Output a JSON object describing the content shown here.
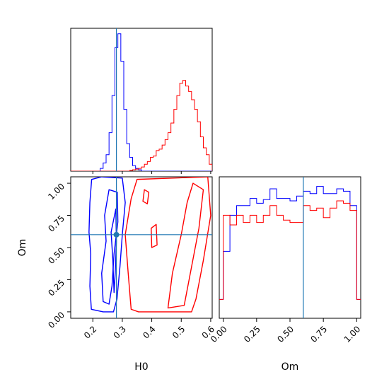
{
  "chart_data": [
    {
      "type": "histogram",
      "panel": "H0 marginal",
      "truth_x": 0.28,
      "xlim": [
        0.125,
        0.605
      ],
      "series": [
        {
          "color": "#0000ff",
          "edges": [
            0.125,
            0.135,
            0.145,
            0.155,
            0.165,
            0.175,
            0.185,
            0.195,
            0.205,
            0.215,
            0.225,
            0.235,
            0.245,
            0.255,
            0.265,
            0.275,
            0.285,
            0.295,
            0.305,
            0.315,
            0.325,
            0.335,
            0.345,
            0.355,
            0.365,
            0.375,
            0.385,
            0.395,
            0.405,
            0.415,
            0.425,
            0.435,
            0.445,
            0.455,
            0.465,
            0.475,
            0.485,
            0.495,
            0.505,
            0.515,
            0.525,
            0.535,
            0.545,
            0.555,
            0.565,
            0.575,
            0.585,
            0.595,
            0.605
          ],
          "values": [
            0,
            0,
            0,
            0,
            0,
            0,
            0,
            0,
            0,
            0,
            0.02,
            0.06,
            0.12,
            0.28,
            0.55,
            0.9,
            1.0,
            0.8,
            0.45,
            0.2,
            0.1,
            0.04,
            0.02,
            0.01,
            0,
            0,
            0,
            0,
            0,
            0,
            0,
            0,
            0,
            0,
            0,
            0,
            0,
            0,
            0,
            0,
            0,
            0,
            0,
            0,
            0,
            0,
            0,
            0
          ]
        },
        {
          "color": "#ff0000",
          "edges": [
            0.125,
            0.135,
            0.145,
            0.155,
            0.165,
            0.175,
            0.185,
            0.195,
            0.205,
            0.215,
            0.225,
            0.235,
            0.245,
            0.255,
            0.265,
            0.275,
            0.285,
            0.295,
            0.305,
            0.315,
            0.325,
            0.335,
            0.345,
            0.355,
            0.365,
            0.375,
            0.385,
            0.395,
            0.405,
            0.415,
            0.425,
            0.435,
            0.445,
            0.455,
            0.465,
            0.475,
            0.485,
            0.495,
            0.505,
            0.515,
            0.525,
            0.535,
            0.545,
            0.555,
            0.565,
            0.575,
            0.585,
            0.595,
            0.605
          ],
          "values": [
            0,
            0,
            0,
            0,
            0,
            0,
            0,
            0,
            0,
            0,
            0,
            0,
            0,
            0,
            0,
            0,
            0,
            0,
            0,
            0,
            0.005,
            0.01,
            0.015,
            0.02,
            0.03,
            0.05,
            0.07,
            0.1,
            0.11,
            0.15,
            0.16,
            0.19,
            0.23,
            0.28,
            0.35,
            0.45,
            0.55,
            0.64,
            0.66,
            0.62,
            0.58,
            0.52,
            0.45,
            0.36,
            0.25,
            0.17,
            0.12,
            0.05
          ]
        }
      ]
    },
    {
      "type": "contour",
      "panel": "H0 vs Om joint",
      "xlabel": "H0",
      "ylabel": "Om",
      "xlim": [
        0.125,
        0.605
      ],
      "ylim": [
        -0.05,
        1.05
      ],
      "xticks": [
        "0.2",
        "0.3",
        "0.4",
        "0.5",
        "0.6"
      ],
      "yticks": [
        "0.00",
        "0.25",
        "0.50",
        "0.75",
        "1.00"
      ],
      "truth": [
        0.28,
        0.6
      ],
      "series": [
        {
          "color": "#0000ff",
          "contours": [
            [
              [
                0.195,
                0.02
              ],
              [
                0.19,
                0.2
              ],
              [
                0.193,
                0.45
              ],
              [
                0.187,
                0.62
              ],
              [
                0.19,
                0.85
              ],
              [
                0.196,
                1.03
              ],
              [
                0.23,
                1.05
              ],
              [
                0.3,
                1.04
              ],
              [
                0.31,
                0.85
              ],
              [
                0.3,
                0.6
              ],
              [
                0.292,
                0.35
              ],
              [
                0.282,
                0.1
              ],
              [
                0.27,
                0.0
              ],
              [
                0.235,
                0.0
              ]
            ],
            [
              [
                0.235,
                0.08
              ],
              [
                0.23,
                0.3
              ],
              [
                0.245,
                0.55
              ],
              [
                0.24,
                0.75
              ],
              [
                0.255,
                0.95
              ],
              [
                0.283,
                0.93
              ],
              [
                0.285,
                0.7
              ],
              [
                0.272,
                0.45
              ],
              [
                0.265,
                0.2
              ],
              [
                0.255,
                0.06
              ]
            ],
            [
              [
                0.272,
                0.15
              ],
              [
                0.268,
                0.4
              ],
              [
                0.262,
                0.62
              ],
              [
                0.278,
                0.8
              ],
              [
                0.28,
                0.55
              ],
              [
                0.276,
                0.3
              ]
            ]
          ]
        },
        {
          "color": "#ff0000",
          "contours": [
            [
              [
                0.33,
                0.02
              ],
              [
                0.32,
                0.3
              ],
              [
                0.31,
                0.6
              ],
              [
                0.33,
                0.88
              ],
              [
                0.35,
                1.03
              ],
              [
                0.59,
                1.05
              ],
              [
                0.6,
                0.75
              ],
              [
                0.575,
                0.4
              ],
              [
                0.55,
                0.1
              ],
              [
                0.535,
                0.0
              ],
              [
                0.5,
                0.0
              ],
              [
                0.45,
                0.0
              ],
              [
                0.4,
                0.0
              ],
              [
                0.355,
                0.0
              ]
            ],
            [
              [
                0.455,
                0.03
              ],
              [
                0.47,
                0.3
              ],
              [
                0.5,
                0.6
              ],
              [
                0.52,
                0.85
              ],
              [
                0.54,
                1.0
              ],
              [
                0.575,
                0.95
              ],
              [
                0.56,
                0.65
              ],
              [
                0.535,
                0.35
              ],
              [
                0.51,
                0.05
              ]
            ],
            [
              [
                0.4,
                0.5
              ],
              [
                0.398,
                0.65
              ],
              [
                0.415,
                0.68
              ],
              [
                0.418,
                0.52
              ]
            ],
            [
              [
                0.37,
                0.86
              ],
              [
                0.375,
                0.95
              ],
              [
                0.39,
                0.93
              ],
              [
                0.385,
                0.84
              ]
            ]
          ]
        }
      ]
    },
    {
      "type": "histogram",
      "panel": "Om marginal",
      "xlabel": "Om",
      "xticks": [
        "0.00",
        "0.25",
        "0.50",
        "0.75",
        "1.00"
      ],
      "xlim": [
        -0.03,
        1.03
      ],
      "truth_x": 0.6,
      "series": [
        {
          "color": "#0000ff",
          "edges": [
            -0.03,
            0.0,
            0.05,
            0.1,
            0.15,
            0.2,
            0.25,
            0.3,
            0.35,
            0.4,
            0.45,
            0.5,
            0.55,
            0.6,
            0.65,
            0.7,
            0.75,
            0.8,
            0.85,
            0.9,
            0.95,
            1.0,
            1.03
          ],
          "values": [
            0.08,
            0.48,
            0.78,
            0.86,
            0.86,
            0.92,
            0.88,
            0.91,
            1.0,
            0.92,
            0.92,
            0.9,
            0.94,
            0.98,
            0.96,
            1.02,
            0.96,
            0.96,
            1.0,
            0.98,
            0.86,
            0.08
          ]
        },
        {
          "color": "#ff0000",
          "edges": [
            -0.03,
            0.0,
            0.05,
            0.1,
            0.15,
            0.2,
            0.25,
            0.3,
            0.35,
            0.4,
            0.45,
            0.5,
            0.55,
            0.6,
            0.65,
            0.7,
            0.75,
            0.8,
            0.85,
            0.9,
            0.95,
            1.0,
            1.03
          ],
          "values": [
            0.08,
            0.78,
            0.7,
            0.78,
            0.72,
            0.78,
            0.72,
            0.78,
            0.86,
            0.78,
            0.74,
            0.72,
            0.72,
            0.86,
            0.82,
            0.84,
            0.76,
            0.84,
            0.9,
            0.88,
            0.82,
            0.08
          ]
        }
      ]
    }
  ],
  "colors": {
    "blue": "#0000ff",
    "red": "#ff0000",
    "truth": "#1f77b4"
  }
}
